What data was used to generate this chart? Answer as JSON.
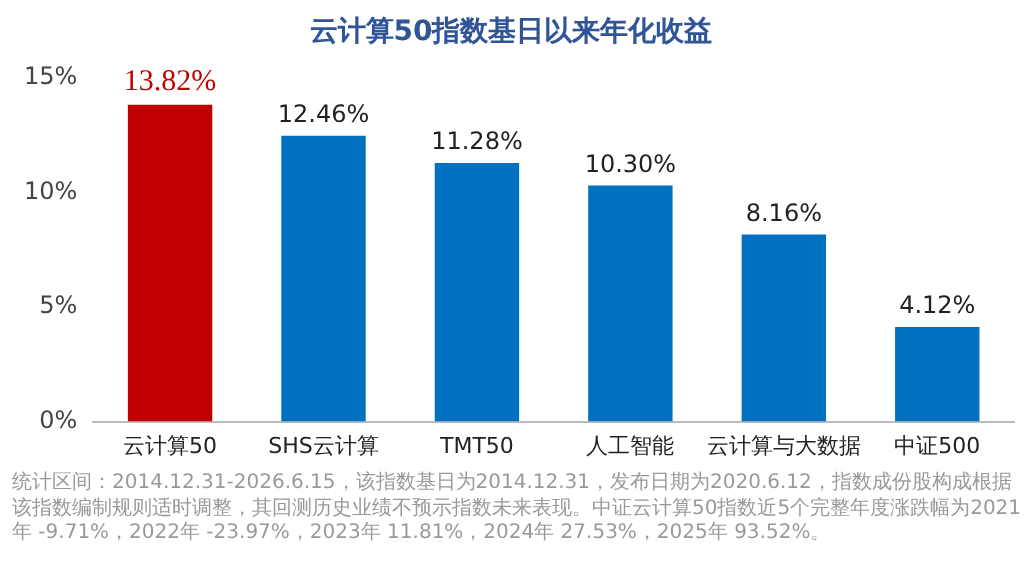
{
  "chart_data": {
    "type": "bar",
    "title": "云计算50指数基日以来年化收益",
    "categories": [
      "云计算50",
      "SHS云计算",
      "TMT50",
      "人工智能",
      "云计算与大数据",
      "中证500"
    ],
    "values": [
      13.82,
      12.46,
      11.28,
      10.3,
      8.16,
      4.12
    ],
    "value_labels": [
      "13.82%",
      "12.46%",
      "11.28%",
      "10.30%",
      "8.16%",
      "4.12%"
    ],
    "colors": [
      "#c00000",
      "#0070c0",
      "#0070c0",
      "#0070c0",
      "#0070c0",
      "#0070c0"
    ],
    "ylim": [
      0,
      15
    ],
    "yticks": [
      {
        "value": 0,
        "label": "0%"
      },
      {
        "value": 5,
        "label": "5%"
      },
      {
        "value": 10,
        "label": "10%"
      },
      {
        "value": 15,
        "label": "15%"
      }
    ],
    "grid": false,
    "legend": false,
    "annotations": [
      "统计区间：2014.12.31-2026.6.15，该指数基日为2014.12.31，发布日期为2020.6.12，指数成份股构成根据该指数编制规则适时调整，其回测历史业绩不预示指数未来表现。中证云计算50指数近5个完整年度涨跌幅为2021年 -9.71%，2022年 -23.97%，2023年 11.81%，2024年 27.53%，2025年 93.52%。"
    ]
  }
}
